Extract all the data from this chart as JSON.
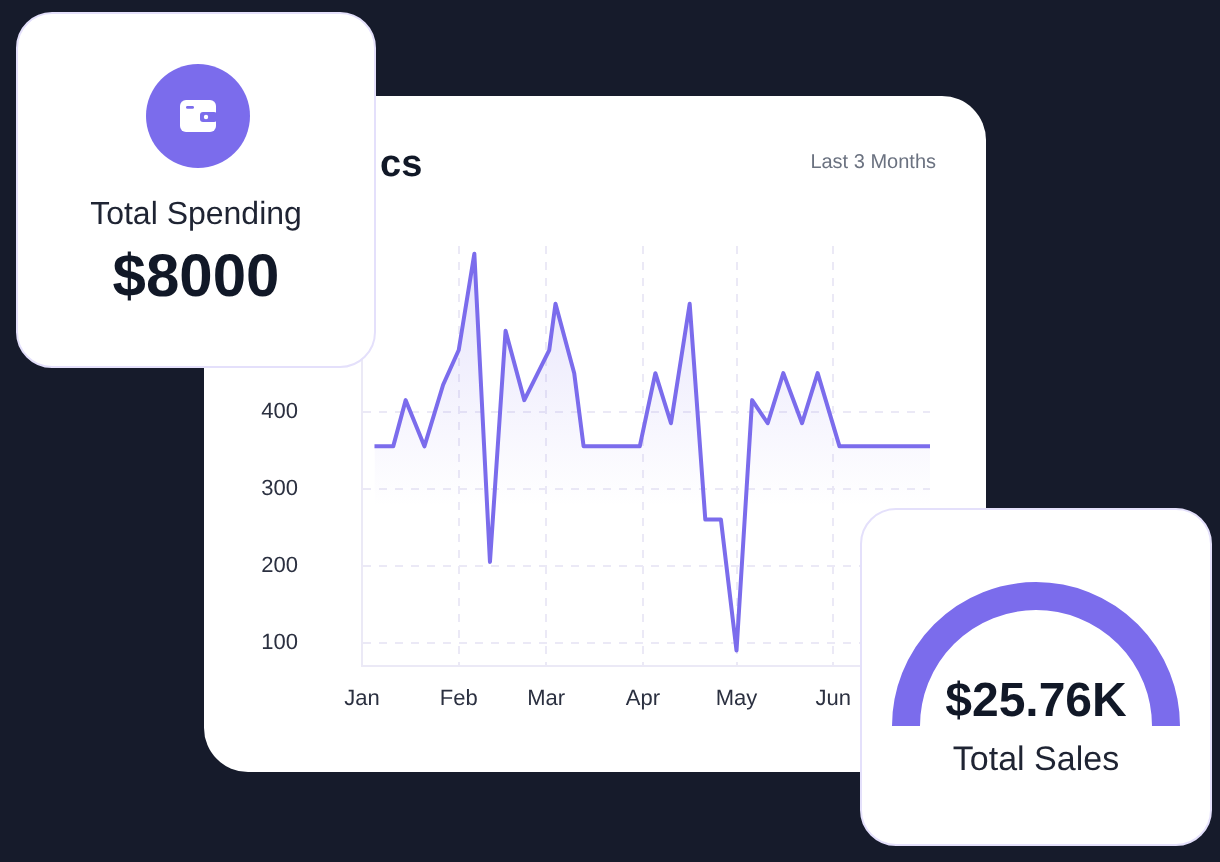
{
  "chart_data": [
    {
      "type": "area",
      "title": "cs",
      "subtitle": "Last 3 Months",
      "x": [
        "--01-05",
        "--01-11",
        "--01-15",
        "--01-21",
        "--01-27",
        "--02-01",
        "--02-06",
        "--02-11",
        "--02-16",
        "--02-22",
        "--03-02",
        "--03-04",
        "--03-10",
        "--03-13",
        "--03-31",
        "--04-05",
        "--04-10",
        "--04-16",
        "--04-21",
        "--04-26",
        "--05-01",
        "--05-06",
        "--05-11",
        "--05-16",
        "--05-22",
        "--05-27",
        "--06-03",
        "--07-02"
      ],
      "series": [
        {
          "color": "#7b6cec",
          "values": [
            355,
            355,
            415,
            355,
            435,
            480,
            605,
            205,
            505,
            415,
            480,
            540,
            450,
            355,
            355,
            450,
            385,
            540,
            260,
            260,
            90,
            415,
            385,
            450,
            385,
            450,
            355,
            355
          ]
        }
      ],
      "xlim": [
        "--01-01",
        "--07-02"
      ],
      "xticks": [
        {
          "value": "--01-01",
          "label": "Jan"
        },
        {
          "value": "--02-01",
          "label": "Feb"
        },
        {
          "value": "--03-01",
          "label": "Mar"
        },
        {
          "value": "--04-01",
          "label": "Apr"
        },
        {
          "value": "--05-01",
          "label": "May"
        },
        {
          "value": "--06-01",
          "label": "Jun"
        }
      ],
      "ylim": [
        70,
        615
      ],
      "yticks": [
        100,
        200,
        300,
        400
      ],
      "grid": true,
      "marker": "none",
      "line_style": "solid"
    },
    {
      "type": "other",
      "title": "Total Spending",
      "annotations": [
        "$8000"
      ]
    },
    {
      "type": "other",
      "title": "Total Sales",
      "annotations": [
        "$25.76K"
      ]
    }
  ]
}
